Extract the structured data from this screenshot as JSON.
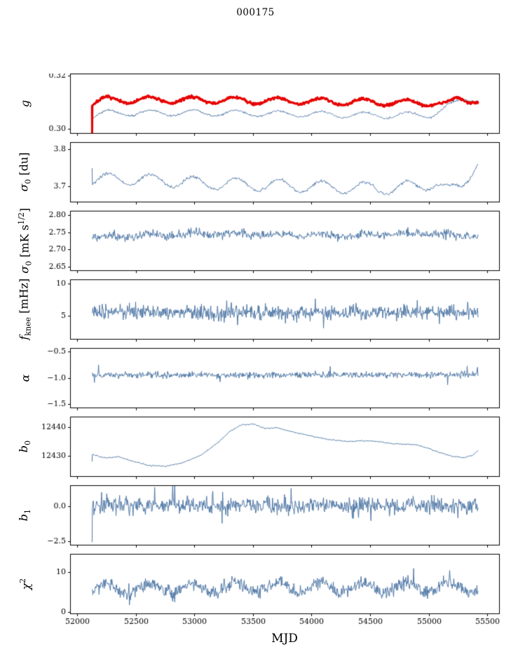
{
  "chart_data": {
    "type": "line",
    "title": "000175",
    "xlabel": "MJD",
    "grid": false,
    "legend": "none",
    "x_range": [
      51940,
      55600
    ],
    "data_x_range": [
      52130,
      55420
    ],
    "x_ticks": {
      "values": [
        52000,
        52500,
        53000,
        53500,
        54000,
        54500,
        55000,
        55500
      ],
      "labels": [
        "52000",
        "52500",
        "53000",
        "53500",
        "54000",
        "54500",
        "55000",
        "55500"
      ]
    },
    "colors": {
      "series_blue": "#4f77a5",
      "series_red": "#e60000",
      "axis": "#000000"
    },
    "panels": [
      {
        "name": "g",
        "label_parts": [
          {
            "text": "g",
            "style": "italic"
          }
        ],
        "ylim": [
          0.2982,
          0.3207
        ],
        "yticks": {
          "values": [
            0.3,
            0.32
          ],
          "labels": [
            "0.30",
            "0.32"
          ]
        },
        "series": [
          {
            "name": "g-smooth-blue",
            "color": "#4f77a5",
            "width": 1.0,
            "points": 550,
            "seed": 21,
            "noise": 0.00035,
            "osc": {
              "amp": 0.0011,
              "period": 365,
              "peak": 52260
            },
            "trend": [
              [
                52130,
                0.3046
              ],
              [
                52250,
                0.306
              ],
              [
                53000,
                0.306
              ],
              [
                54000,
                0.3055
              ],
              [
                54700,
                0.305
              ],
              [
                55050,
                0.3055
              ],
              [
                55200,
                0.309
              ],
              [
                55300,
                0.3116
              ],
              [
                55420,
                0.311
              ]
            ]
          },
          {
            "name": "g-thick-red",
            "color": "#e60000",
            "width": 3.0,
            "points": 700,
            "seed": 7,
            "noise": 0.00045,
            "osc": {
              "amp": 0.0012,
              "period": 365,
              "peak": 52250
            },
            "pre": [
              [
                52127,
                0.3085
              ],
              [
                52128,
                0.2985
              ]
            ],
            "trend": [
              [
                52130,
                0.3095
              ],
              [
                52250,
                0.3108
              ],
              [
                53000,
                0.3108
              ],
              [
                54000,
                0.3104
              ],
              [
                54700,
                0.3098
              ],
              [
                55050,
                0.3098
              ],
              [
                55150,
                0.3088
              ],
              [
                55250,
                0.3115
              ],
              [
                55420,
                0.3105
              ]
            ]
          }
        ]
      },
      {
        "name": "sigma0-du",
        "label_parts": [
          {
            "text": "σ",
            "style": "italic"
          },
          {
            "text": "0",
            "style": "sub"
          },
          {
            "text": " [du]",
            "style": "normal"
          }
        ],
        "ylim": [
          3.658,
          3.818
        ],
        "yticks": {
          "values": [
            3.7,
            3.8
          ],
          "labels": [
            "3.7",
            "3.8"
          ]
        },
        "series": [
          {
            "name": "sigma0-du",
            "color": "#4f77a5",
            "width": 1.0,
            "points": 520,
            "seed": 33,
            "noise": 0.0035,
            "osc": {
              "amp": 0.016,
              "period": 365,
              "peak": 52630
            },
            "pre": [
              [
                52128,
                3.748
              ]
            ],
            "trend": [
              [
                52130,
                3.716
              ],
              [
                52400,
                3.721
              ],
              [
                53000,
                3.71
              ],
              [
                54000,
                3.7
              ],
              [
                54600,
                3.695
              ],
              [
                54900,
                3.7
              ],
              [
                55050,
                3.712
              ],
              [
                55180,
                3.686
              ],
              [
                55280,
                3.7
              ],
              [
                55420,
                3.772
              ]
            ]
          }
        ]
      },
      {
        "name": "sigma0-mks",
        "label_parts": [
          {
            "text": "σ",
            "style": "italic"
          },
          {
            "text": "0",
            "style": "sub"
          },
          {
            "text": " [mK s",
            "style": "normal"
          },
          {
            "text": "1/2",
            "style": "sup"
          },
          {
            "text": "]",
            "style": "normal"
          }
        ],
        "ylim": [
          2.638,
          2.812
        ],
        "yticks": {
          "values": [
            2.65,
            2.7,
            2.75,
            2.8
          ],
          "labels": [
            "2.65",
            "2.70",
            "2.75",
            "2.80"
          ]
        },
        "series": [
          {
            "name": "sigma0-mks",
            "color": "#4f77a5",
            "width": 1.0,
            "points": 650,
            "seed": 45,
            "noise": 0.011,
            "osc": {
              "amp": 0.004,
              "period": 365,
              "peak": 52630
            },
            "trend": [
              [
                52130,
                2.736
              ],
              [
                52600,
                2.741
              ],
              [
                53200,
                2.746
              ],
              [
                53800,
                2.742
              ],
              [
                54400,
                2.741
              ],
              [
                55000,
                2.748
              ],
              [
                55250,
                2.738
              ],
              [
                55420,
                2.742
              ]
            ]
          }
        ]
      },
      {
        "name": "fknee",
        "label_parts": [
          {
            "text": "f",
            "style": "italic"
          },
          {
            "text": "knee",
            "style": "sub"
          },
          {
            "text": " [mHz]",
            "style": "normal"
          }
        ],
        "ylim": [
          1.2,
          10.7
        ],
        "yticks": {
          "values": [
            5,
            10
          ],
          "labels": [
            "5",
            "10"
          ]
        },
        "series": [
          {
            "name": "fknee",
            "color": "#4f77a5",
            "width": 1.0,
            "points": 750,
            "seed": 58,
            "noise": 1.0,
            "spike_p": 0.02,
            "spike_amp": 1.8,
            "trend": [
              [
                52130,
                5.55
              ],
              [
                53000,
                5.45
              ],
              [
                54000,
                5.4
              ],
              [
                55420,
                5.45
              ]
            ]
          }
        ]
      },
      {
        "name": "alpha",
        "label_parts": [
          {
            "text": "α",
            "style": "italic"
          }
        ],
        "ylim": [
          -1.58,
          -0.43
        ],
        "yticks": {
          "values": [
            -1.5,
            -1.0,
            -0.5
          ],
          "labels": [
            "−1.5",
            "−1.0",
            "−0.5"
          ]
        },
        "series": [
          {
            "name": "alpha",
            "color": "#4f77a5",
            "width": 1.0,
            "points": 750,
            "seed": 61,
            "noise": 0.05,
            "spike_p": 0.015,
            "spike_amp": 0.12,
            "trend": [
              [
                52130,
                -0.95
              ],
              [
                55420,
                -0.94
              ]
            ]
          }
        ]
      },
      {
        "name": "b0",
        "label_parts": [
          {
            "text": "b",
            "style": "italic"
          },
          {
            "text": "0",
            "style": "sub"
          }
        ],
        "ylim": [
          12422.5,
          12443.8
        ],
        "yticks": {
          "values": [
            12430,
            12440
          ],
          "labels": [
            "12430",
            "12440"
          ]
        },
        "series": [
          {
            "name": "b0",
            "color": "#4f77a5",
            "width": 1.0,
            "points": 450,
            "seed": 64,
            "noise": 0.17,
            "pre": [
              [
                52128,
                12428.0
              ]
            ],
            "trend": [
              [
                52130,
                12430.3
              ],
              [
                52250,
                12429.2
              ],
              [
                52350,
                12429.6
              ],
              [
                52450,
                12428.3
              ],
              [
                52600,
                12426.6
              ],
              [
                52750,
                12426.2
              ],
              [
                52900,
                12427.5
              ],
              [
                53050,
                12430.0
              ],
              [
                53200,
                12434.5
              ],
              [
                53300,
                12438.5
              ],
              [
                53400,
                12440.8
              ],
              [
                53500,
                12441.3
              ],
              [
                53600,
                12439.6
              ],
              [
                53700,
                12439.9
              ],
              [
                53900,
                12437.8
              ],
              [
                54100,
                12436.0
              ],
              [
                54300,
                12435.0
              ],
              [
                54500,
                12435.3
              ],
              [
                54700,
                12434.2
              ],
              [
                54900,
                12433.8
              ],
              [
                55000,
                12432.5
              ],
              [
                55100,
                12431.0
              ],
              [
                55200,
                12429.8
              ],
              [
                55300,
                12429.3
              ],
              [
                55370,
                12430.0
              ],
              [
                55420,
                12431.8
              ]
            ]
          }
        ]
      },
      {
        "name": "b1",
        "label_parts": [
          {
            "text": "b",
            "style": "italic"
          },
          {
            "text": "1",
            "style": "sub"
          }
        ],
        "ylim": [
          -2.8,
          1.51
        ],
        "yticks": {
          "values": [
            0.0,
            -2.5
          ],
          "labels": [
            "0.0",
            "−2.5"
          ]
        },
        "series": [
          {
            "name": "b1",
            "color": "#4f77a5",
            "width": 1.0,
            "points": 750,
            "seed": 77,
            "noise": 0.5,
            "spike_p": 0.02,
            "spike_amp": 1.0,
            "pre": [
              [
                52128,
                -2.55
              ]
            ],
            "trend": [
              [
                52130,
                0.05
              ],
              [
                55420,
                0.05
              ]
            ]
          }
        ]
      },
      {
        "name": "chi2",
        "label_parts": [
          {
            "text": "χ",
            "style": "italic"
          },
          {
            "text": "2",
            "style": "sup"
          }
        ],
        "ylim": [
          -0.5,
          14.5
        ],
        "yticks": {
          "values": [
            0,
            10
          ],
          "labels": [
            "0",
            "10"
          ]
        },
        "series": [
          {
            "name": "chi2",
            "color": "#4f77a5",
            "width": 1.0,
            "points": 750,
            "seed": 88,
            "noise": 1.4,
            "spike_p": 0.01,
            "spike_amp": 2.5,
            "osc": {
              "amp": 1.2,
              "period": 365,
              "peak": 52250
            },
            "trend": [
              [
                52130,
                5.8
              ],
              [
                53500,
                6.2
              ],
              [
                55420,
                6.0
              ]
            ]
          }
        ]
      }
    ]
  }
}
